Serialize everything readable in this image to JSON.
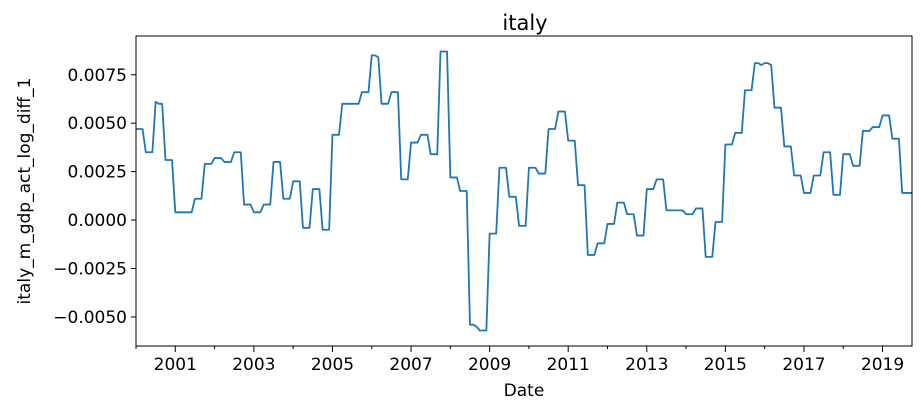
{
  "chart_data": {
    "type": "line",
    "title": "italy",
    "xlabel": "Date",
    "ylabel": "italy_m_gdp_act_log_diff_1",
    "xlim": [
      "2000-01-01",
      "2019-10-01"
    ],
    "ylim": [
      -0.0065,
      0.0095
    ],
    "xticks": [
      "2001",
      "2003",
      "2005",
      "2007",
      "2009",
      "2011",
      "2013",
      "2015",
      "2017",
      "2019"
    ],
    "yticks": [
      "−0.0050",
      "−0.0025",
      "0.0000",
      "0.0025",
      "0.0050",
      "0.0075"
    ],
    "grid": false,
    "legend": "none",
    "series": [
      {
        "color": "#1f77b4",
        "x": [
          "2000-01",
          "2000-02",
          "2000-03",
          "2000-04",
          "2000-05",
          "2000-06",
          "2000-07",
          "2000-08",
          "2000-09",
          "2000-10",
          "2000-11",
          "2000-12",
          "2001-01",
          "2001-02",
          "2001-03",
          "2001-04",
          "2001-05",
          "2001-06",
          "2001-07",
          "2001-08",
          "2001-09",
          "2001-10",
          "2001-11",
          "2001-12",
          "2002-01",
          "2002-02",
          "2002-03",
          "2002-04",
          "2002-05",
          "2002-06",
          "2002-07",
          "2002-08",
          "2002-09",
          "2002-10",
          "2002-11",
          "2002-12",
          "2003-01",
          "2003-02",
          "2003-03",
          "2003-04",
          "2003-05",
          "2003-06",
          "2003-07",
          "2003-08",
          "2003-09",
          "2003-10",
          "2003-11",
          "2003-12",
          "2004-01",
          "2004-02",
          "2004-03",
          "2004-04",
          "2004-05",
          "2004-06",
          "2004-07",
          "2004-08",
          "2004-09",
          "2004-10",
          "2004-11",
          "2004-12",
          "2005-01",
          "2005-02",
          "2005-03",
          "2005-04",
          "2005-05",
          "2005-06",
          "2005-07",
          "2005-08",
          "2005-09",
          "2005-10",
          "2005-11",
          "2005-12",
          "2006-01",
          "2006-02",
          "2006-03",
          "2006-04",
          "2006-05",
          "2006-06",
          "2006-07",
          "2006-08",
          "2006-09",
          "2006-10",
          "2006-11",
          "2006-12",
          "2007-01",
          "2007-02",
          "2007-03",
          "2007-04",
          "2007-05",
          "2007-06",
          "2007-07",
          "2007-08",
          "2007-09",
          "2007-10",
          "2007-11",
          "2007-12",
          "2008-01",
          "2008-02",
          "2008-03",
          "2008-04",
          "2008-05",
          "2008-06",
          "2008-07",
          "2008-08",
          "2008-09",
          "2008-10",
          "2008-11",
          "2008-12",
          "2009-01",
          "2009-02",
          "2009-03",
          "2009-04",
          "2009-05",
          "2009-06",
          "2009-07",
          "2009-08",
          "2009-09",
          "2009-10",
          "2009-11",
          "2009-12",
          "2010-01",
          "2010-02",
          "2010-03",
          "2010-04",
          "2010-05",
          "2010-06",
          "2010-07",
          "2010-08",
          "2010-09",
          "2010-10",
          "2010-11",
          "2010-12",
          "2011-01",
          "2011-02",
          "2011-03",
          "2011-04",
          "2011-05",
          "2011-06",
          "2011-07",
          "2011-08",
          "2011-09",
          "2011-10",
          "2011-11",
          "2011-12",
          "2012-01",
          "2012-02",
          "2012-03",
          "2012-04",
          "2012-05",
          "2012-06",
          "2012-07",
          "2012-08",
          "2012-09",
          "2012-10",
          "2012-11",
          "2012-12",
          "2013-01",
          "2013-02",
          "2013-03",
          "2013-04",
          "2013-05",
          "2013-06",
          "2013-07",
          "2013-08",
          "2013-09",
          "2013-10",
          "2013-11",
          "2013-12",
          "2014-01",
          "2014-02",
          "2014-03",
          "2014-04",
          "2014-05",
          "2014-06",
          "2014-07",
          "2014-08",
          "2014-09",
          "2014-10",
          "2014-11",
          "2014-12",
          "2015-01",
          "2015-02",
          "2015-03",
          "2015-04",
          "2015-05",
          "2015-06",
          "2015-07",
          "2015-08",
          "2015-09",
          "2015-10",
          "2015-11",
          "2015-12",
          "2016-01",
          "2016-02",
          "2016-03",
          "2016-04",
          "2016-05",
          "2016-06",
          "2016-07",
          "2016-08",
          "2016-09",
          "2016-10",
          "2016-11",
          "2016-12",
          "2017-01",
          "2017-02",
          "2017-03",
          "2017-04",
          "2017-05",
          "2017-06",
          "2017-07",
          "2017-08",
          "2017-09",
          "2017-10",
          "2017-11",
          "2017-12",
          "2018-01",
          "2018-02",
          "2018-03",
          "2018-04",
          "2018-05",
          "2018-06",
          "2018-07",
          "2018-08",
          "2018-09",
          "2018-10",
          "2018-11",
          "2018-12",
          "2019-01",
          "2019-02",
          "2019-03",
          "2019-04",
          "2019-05",
          "2019-06",
          "2019-07",
          "2019-08",
          "2019-09",
          "2019-10"
        ],
        "y": [
          0.0047,
          0.0047,
          0.0047,
          0.0035,
          0.0035,
          0.0035,
          0.0061,
          0.006,
          0.006,
          0.0031,
          0.0031,
          0.0031,
          0.0004,
          0.0004,
          0.0004,
          0.0004,
          0.0004,
          0.0004,
          0.0011,
          0.0011,
          0.0011,
          0.0029,
          0.0029,
          0.0029,
          0.0032,
          0.0032,
          0.0032,
          0.003,
          0.003,
          0.003,
          0.0035,
          0.0035,
          0.0035,
          0.0008,
          0.0008,
          0.0008,
          0.0004,
          0.0004,
          0.0004,
          0.0008,
          0.0008,
          0.0008,
          0.003,
          0.003,
          0.003,
          0.0011,
          0.0011,
          0.0011,
          0.002,
          0.002,
          0.002,
          -0.0004,
          -0.0004,
          -0.0004,
          0.0016,
          0.0016,
          0.0016,
          -0.0005,
          -0.0005,
          -0.0005,
          0.0044,
          0.0044,
          0.0044,
          0.006,
          0.006,
          0.006,
          0.006,
          0.006,
          0.006,
          0.0066,
          0.0066,
          0.0066,
          0.0085,
          0.0085,
          0.0084,
          0.006,
          0.006,
          0.006,
          0.0066,
          0.0066,
          0.0066,
          0.0021,
          0.0021,
          0.0021,
          0.004,
          0.004,
          0.004,
          0.0044,
          0.0044,
          0.0044,
          0.0034,
          0.0034,
          0.0034,
          0.0087,
          0.0087,
          0.0087,
          0.0022,
          0.0022,
          0.0022,
          0.0015,
          0.0015,
          0.0015,
          -0.0054,
          -0.0054,
          -0.0055,
          -0.0057,
          -0.0057,
          -0.0057,
          -0.0007,
          -0.0007,
          -0.0007,
          0.0027,
          0.0027,
          0.0027,
          0.0012,
          0.0012,
          0.0012,
          -0.0003,
          -0.0003,
          -0.0003,
          0.0027,
          0.0027,
          0.0027,
          0.0024,
          0.0024,
          0.0024,
          0.0047,
          0.0047,
          0.0047,
          0.0056,
          0.0056,
          0.0056,
          0.0041,
          0.0041,
          0.0041,
          0.0018,
          0.0018,
          0.0018,
          -0.0018,
          -0.0018,
          -0.0018,
          -0.0012,
          -0.0012,
          -0.0012,
          -0.0002,
          -0.0002,
          -0.0002,
          0.0009,
          0.0009,
          0.0009,
          0.0003,
          0.0003,
          0.0003,
          -0.0008,
          -0.0008,
          -0.0008,
          0.0016,
          0.0016,
          0.0016,
          0.0021,
          0.0021,
          0.0021,
          0.0005,
          0.0005,
          0.0005,
          0.0005,
          0.0005,
          0.0005,
          0.0003,
          0.0003,
          0.0003,
          0.0006,
          0.0006,
          0.0006,
          -0.0019,
          -0.0019,
          -0.0019,
          -0.0001,
          -0.0001,
          -0.0001,
          0.0039,
          0.0039,
          0.0039,
          0.0045,
          0.0045,
          0.0045,
          0.0067,
          0.0067,
          0.0067,
          0.0081,
          0.0081,
          0.008,
          0.0081,
          0.0081,
          0.008,
          0.0058,
          0.0058,
          0.0058,
          0.0038,
          0.0038,
          0.0038,
          0.0023,
          0.0023,
          0.0023,
          0.0014,
          0.0014,
          0.0014,
          0.0023,
          0.0023,
          0.0023,
          0.0035,
          0.0035,
          0.0035,
          0.0013,
          0.0013,
          0.0013,
          0.0034,
          0.0034,
          0.0034,
          0.0028,
          0.0028,
          0.0028,
          0.0046,
          0.0046,
          0.0046,
          0.0048,
          0.0048,
          0.0048,
          0.0054,
          0.0054,
          0.0054,
          0.0042,
          0.0042,
          0.0042,
          0.0014,
          0.0014,
          0.0014,
          0.0014
        ]
      }
    ]
  }
}
